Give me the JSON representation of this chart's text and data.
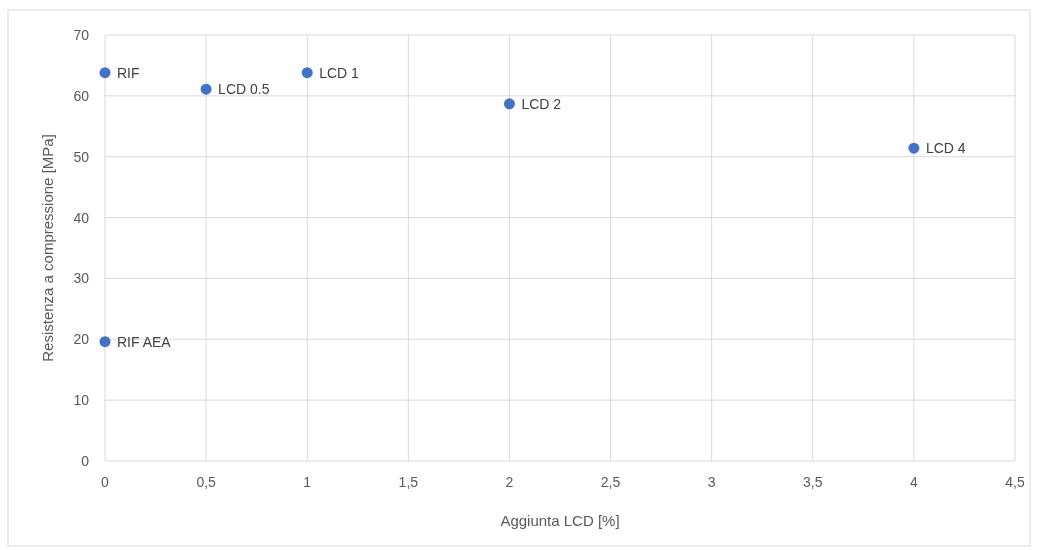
{
  "chart_data": {
    "type": "scatter",
    "xlabel": "Aggiunta LCD [%]",
    "ylabel": "Resistenza a compressione [MPa]",
    "xlim": [
      0,
      4.5
    ],
    "ylim": [
      0,
      70
    ],
    "xticks": [
      0,
      {
        "value": 0.5,
        "label": "0,5"
      },
      1,
      {
        "value": 1.5,
        "label": "1,5"
      },
      2,
      {
        "value": 2.5,
        "label": "2,5"
      },
      3,
      {
        "value": 3.5,
        "label": "3,5"
      },
      4,
      {
        "value": 4.5,
        "label": "4,5"
      }
    ],
    "yticks": [
      0,
      10,
      20,
      30,
      40,
      50,
      60,
      70
    ],
    "grid": true,
    "legend": false,
    "marker": "circle",
    "series": [
      {
        "name": "RIF",
        "x": [
          0
        ],
        "values": [
          63.8
        ],
        "color": "#4472c4"
      },
      {
        "name": "LCD 0.5",
        "x": [
          0.5
        ],
        "values": [
          61.1
        ],
        "color": "#4472c4"
      },
      {
        "name": "LCD 1",
        "x": [
          1
        ],
        "values": [
          63.8
        ],
        "color": "#4472c4"
      },
      {
        "name": "LCD 2",
        "x": [
          2
        ],
        "values": [
          58.7
        ],
        "color": "#4472c4"
      },
      {
        "name": "LCD 4",
        "x": [
          4
        ],
        "values": [
          51.4
        ],
        "color": "#4472c4"
      },
      {
        "name": "RIF AEA",
        "x": [
          0
        ],
        "values": [
          19.6
        ],
        "color": "#4472c4"
      }
    ]
  }
}
